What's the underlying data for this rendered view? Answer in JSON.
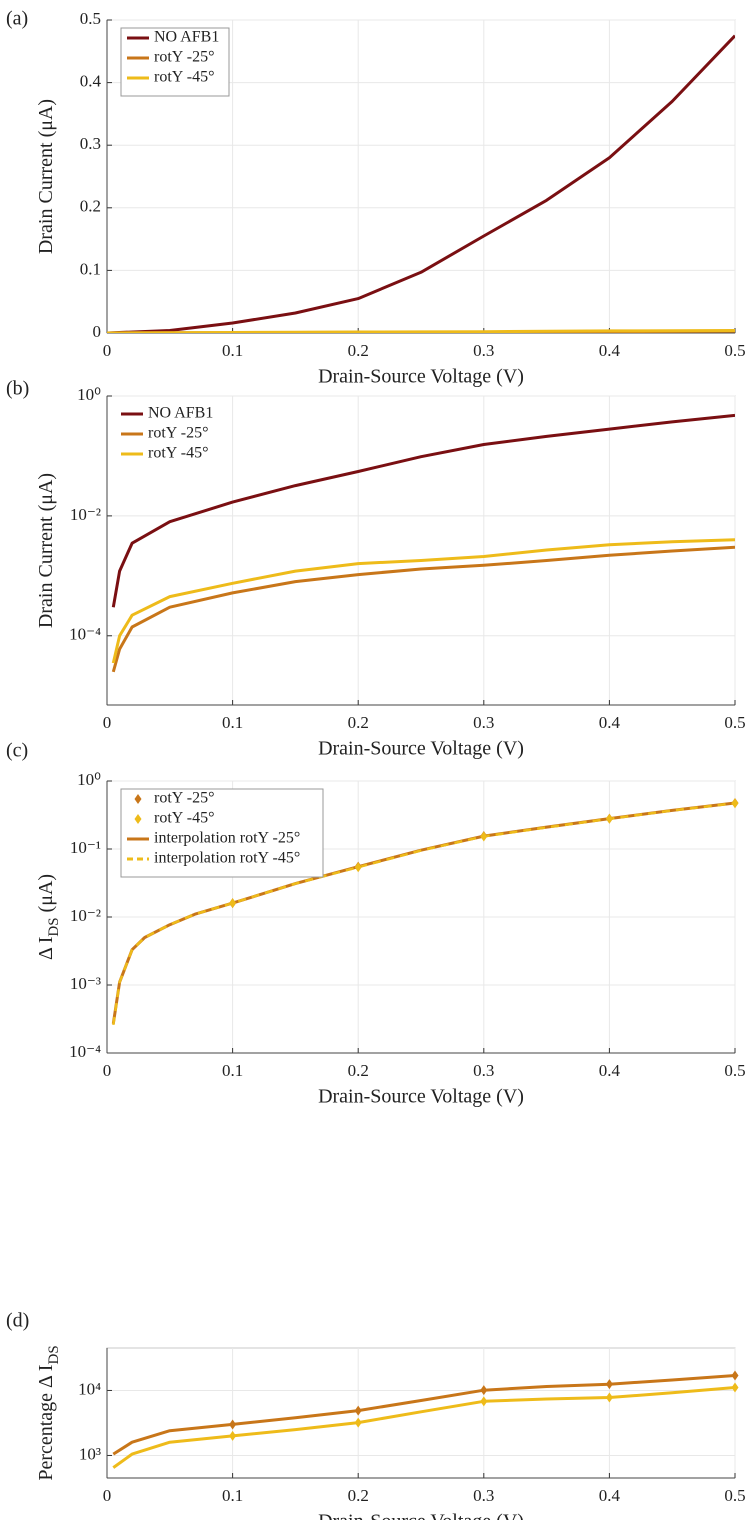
{
  "chart_data": [
    {
      "type": "line",
      "panel": "(a)",
      "xlabel": "Drain-Source Voltage (V)",
      "ylabel": [
        "Drain Current (μA)"
      ],
      "xlim": [
        0,
        0.5
      ],
      "xticks": [
        0,
        0.1,
        0.2,
        0.3,
        0.4,
        0.5
      ],
      "ylim": [
        0,
        0.5
      ],
      "yticks": [
        0,
        0.1,
        0.2,
        0.3,
        0.4,
        0.5
      ],
      "log": false,
      "grid": true,
      "legend": "upper left",
      "legend_box": true,
      "series": [
        {
          "name": "NO AFB1",
          "color": "#7a0f12",
          "style": "line",
          "x": [
            0,
            0.05,
            0.1,
            0.15,
            0.2,
            0.25,
            0.3,
            0.35,
            0.4,
            0.45,
            0.5
          ],
          "values": [
            0,
            0.004,
            0.016,
            0.032,
            0.055,
            0.097,
            0.155,
            0.212,
            0.28,
            0.37,
            0.475
          ]
        },
        {
          "name": "rotY -25°",
          "color": "#c87619",
          "style": "line",
          "x": [
            0,
            0.05,
            0.1,
            0.15,
            0.2,
            0.25,
            0.3,
            0.35,
            0.4,
            0.45,
            0.5
          ],
          "values": [
            0,
            0.0003,
            0.0005,
            0.0008,
            0.001,
            0.0013,
            0.0015,
            0.0018,
            0.0022,
            0.0026,
            0.003
          ]
        },
        {
          "name": "rotY -45°",
          "color": "#eebb1a",
          "style": "line",
          "x": [
            0,
            0.05,
            0.1,
            0.15,
            0.2,
            0.25,
            0.3,
            0.35,
            0.4,
            0.45,
            0.5
          ],
          "values": [
            0,
            0.00045,
            0.00075,
            0.0012,
            0.0016,
            0.0018,
            0.0021,
            0.0027,
            0.0033,
            0.0037,
            0.004
          ]
        }
      ]
    },
    {
      "type": "line",
      "panel": "(b)",
      "xlabel": "Drain-Source Voltage (V)",
      "ylabel": [
        "Drain Current (μA)"
      ],
      "xlim": [
        0,
        0.5
      ],
      "xticks": [
        0,
        0.1,
        0.2,
        0.3,
        0.4,
        0.5
      ],
      "ylim": [
        7e-06,
        1
      ],
      "yticks": [
        {
          "value": 0.0001,
          "label": "10⁻⁴"
        },
        {
          "value": 0.01,
          "label": "10⁻²"
        },
        {
          "value": 1,
          "label": "10⁰"
        }
      ],
      "log": true,
      "grid": true,
      "legend": "upper left",
      "legend_box": false,
      "series": [
        {
          "name": "NO AFB1",
          "color": "#7a0f12",
          "style": "line",
          "x": [
            0.005,
            0.01,
            0.02,
            0.05,
            0.1,
            0.15,
            0.2,
            0.25,
            0.3,
            0.35,
            0.4,
            0.45,
            0.5
          ],
          "values": [
            0.0003,
            0.0012,
            0.0035,
            0.008,
            0.017,
            0.032,
            0.055,
            0.097,
            0.155,
            0.212,
            0.28,
            0.37,
            0.475
          ]
        },
        {
          "name": "rotY -25°",
          "color": "#c87619",
          "style": "line",
          "x": [
            0.005,
            0.01,
            0.02,
            0.05,
            0.1,
            0.15,
            0.2,
            0.25,
            0.3,
            0.35,
            0.4,
            0.45,
            0.5
          ],
          "values": [
            2.5e-05,
            6e-05,
            0.00014,
            0.0003,
            0.00052,
            0.0008,
            0.00105,
            0.0013,
            0.0015,
            0.0018,
            0.0022,
            0.0026,
            0.003
          ]
        },
        {
          "name": "rotY -45°",
          "color": "#eebb1a",
          "style": "line",
          "x": [
            0.005,
            0.01,
            0.02,
            0.05,
            0.1,
            0.15,
            0.2,
            0.25,
            0.3,
            0.35,
            0.4,
            0.45,
            0.5
          ],
          "values": [
            3.5e-05,
            0.0001,
            0.00022,
            0.00045,
            0.00075,
            0.0012,
            0.0016,
            0.0018,
            0.0021,
            0.0027,
            0.0033,
            0.0037,
            0.004
          ]
        }
      ]
    },
    {
      "type": "line",
      "panel": "(c)",
      "xlabel": "Drain-Source Voltage (V)",
      "ylabel": [
        "Δ I",
        "DS",
        " (μA)"
      ],
      "xlim": [
        0,
        0.5
      ],
      "xticks": [
        0,
        0.1,
        0.2,
        0.3,
        0.4,
        0.5
      ],
      "ylim": [
        0.0001,
        1
      ],
      "yticks": [
        {
          "value": 0.0001,
          "label": "10⁻⁴"
        },
        {
          "value": 0.001,
          "label": "10⁻³"
        },
        {
          "value": 0.01,
          "label": "10⁻²"
        },
        {
          "value": 0.1,
          "label": "10⁻¹"
        },
        {
          "value": 1,
          "label": "10⁰"
        }
      ],
      "log": true,
      "grid": true,
      "legend": "upper left",
      "legend_box": true,
      "series": [
        {
          "name": "rotY -25°",
          "color": "#c87619",
          "style": "marker",
          "x": [
            0.1,
            0.2,
            0.3,
            0.4,
            0.5
          ],
          "values": [
            0.016,
            0.055,
            0.155,
            0.28,
            0.475
          ]
        },
        {
          "name": "rotY -45°",
          "color": "#eebb1a",
          "style": "marker",
          "x": [
            0.1,
            0.2,
            0.3,
            0.4,
            0.5
          ],
          "values": [
            0.016,
            0.054,
            0.153,
            0.278,
            0.471
          ]
        },
        {
          "name": "interpolation rotY -25°",
          "color": "#c87619",
          "style": "line",
          "x": [
            0.005,
            0.01,
            0.02,
            0.03,
            0.05,
            0.07,
            0.1,
            0.15,
            0.2,
            0.25,
            0.3,
            0.35,
            0.4,
            0.45,
            0.5
          ],
          "values": [
            0.00027,
            0.0011,
            0.0033,
            0.005,
            0.0077,
            0.011,
            0.016,
            0.031,
            0.055,
            0.096,
            0.155,
            0.21,
            0.28,
            0.37,
            0.475
          ]
        },
        {
          "name": "interpolation rotY -45°",
          "color": "#eebb1a",
          "style": "line",
          "dash": true,
          "x": [
            0.005,
            0.01,
            0.02,
            0.03,
            0.05,
            0.07,
            0.1,
            0.15,
            0.2,
            0.25,
            0.3,
            0.35,
            0.4,
            0.45,
            0.5
          ],
          "values": [
            0.00026,
            0.0011,
            0.0033,
            0.005,
            0.0077,
            0.011,
            0.016,
            0.031,
            0.054,
            0.095,
            0.153,
            0.208,
            0.278,
            0.368,
            0.471
          ]
        }
      ]
    },
    {
      "type": "line",
      "panel": "(d)",
      "xlabel": "Drain-Source Voltage (V)",
      "ylabel": [
        "Percentage Δ I",
        "DS"
      ],
      "xlim": [
        0,
        0.5
      ],
      "xticks": [
        0,
        0.1,
        0.2,
        0.3,
        0.4,
        0.5
      ],
      "ylim": [
        450,
        45000
      ],
      "yticks": [
        {
          "value": 1000,
          "label": "10³"
        },
        {
          "value": 10000,
          "label": "10⁴"
        }
      ],
      "log": true,
      "grid": true,
      "series": [
        {
          "color": "#c87619",
          "style": "line",
          "x": [
            0.005,
            0.02,
            0.05,
            0.1,
            0.15,
            0.2,
            0.25,
            0.3,
            0.35,
            0.4,
            0.45,
            0.5
          ],
          "values": [
            1050,
            1600,
            2400,
            3000,
            3800,
            4900,
            7000,
            10100,
            11500,
            12500,
            14500,
            17000
          ]
        },
        {
          "color": "#eebb1a",
          "style": "line",
          "x": [
            0.005,
            0.02,
            0.05,
            0.1,
            0.15,
            0.2,
            0.25,
            0.3,
            0.35,
            0.4,
            0.45,
            0.5
          ],
          "values": [
            650,
            1050,
            1600,
            2000,
            2500,
            3200,
            4700,
            6800,
            7400,
            7800,
            9200,
            11100
          ]
        },
        {
          "color": "#c87619",
          "style": "marker",
          "x": [
            0.1,
            0.2,
            0.3,
            0.4,
            0.5
          ],
          "values": [
            3000,
            4900,
            10100,
            12500,
            17000
          ]
        },
        {
          "color": "#eebb1a",
          "style": "marker",
          "x": [
            0.1,
            0.2,
            0.3,
            0.4,
            0.5
          ],
          "values": [
            2000,
            3200,
            6800,
            7800,
            11100
          ]
        }
      ]
    }
  ]
}
